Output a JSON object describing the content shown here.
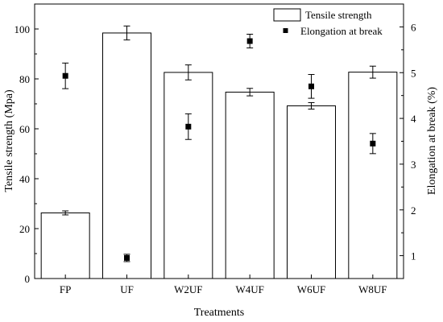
{
  "chart_data": {
    "type": "bar",
    "categories": [
      "FP",
      "UF",
      "W2UF",
      "W4UF",
      "W6UF",
      "W8UF"
    ],
    "xlabel": "Treatments",
    "ylabel_left": "Tensile strength (Mpa)",
    "ylabel_right": "Elongation at break (%)",
    "ylim_left": [
      0,
      110
    ],
    "ylim_right": [
      0.5,
      6.5
    ],
    "yticks_left": [
      "0",
      "20",
      "40",
      "60",
      "80",
      "100"
    ],
    "yticks_right": [
      "1",
      "2",
      "3",
      "4",
      "5",
      "6"
    ],
    "legend_position": "top-right",
    "grid": false,
    "series": [
      {
        "name": "Tensile strength",
        "kind": "bar",
        "axis": "left",
        "values": [
          26.3,
          98.4,
          82.6,
          74.7,
          69.2,
          82.7
        ],
        "errors": [
          0.8,
          2.8,
          3.0,
          1.5,
          1.3,
          2.4
        ]
      },
      {
        "name": "Elongation at break",
        "kind": "scatter",
        "axis": "right",
        "values": [
          4.93,
          0.95,
          3.82,
          5.69,
          4.7,
          3.45
        ],
        "errors": [
          0.28,
          0.08,
          0.28,
          0.15,
          0.26,
          0.22
        ]
      }
    ]
  }
}
